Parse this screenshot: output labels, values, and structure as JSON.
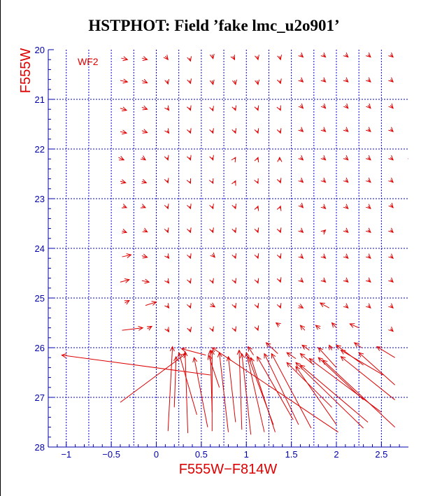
{
  "chart_data": {
    "type": "scatter",
    "title": "HSTPHOT: Field ’fake lmc_u2o901’",
    "xlabel": "F555W−F814W",
    "ylabel": "F555W",
    "annotation": "WF2",
    "xlim": [
      -1.2,
      2.8
    ],
    "ylim": [
      28,
      20
    ],
    "x_ticks": [
      "−1",
      "−0.5",
      "0",
      "0.5",
      "1",
      "1.5",
      "2",
      "2.5"
    ],
    "y_ticks": [
      "20",
      "21",
      "22",
      "23",
      "24",
      "25",
      "26",
      "27",
      "28"
    ],
    "grid": true,
    "grid_x": [
      -0.75,
      -0.25,
      0.25,
      0.75,
      1.25,
      1.75,
      2.25
    ],
    "grid_y": [
      21,
      22,
      23,
      24,
      25,
      26,
      27
    ],
    "colors": {
      "axis": "#0000aa",
      "grid": "#0000cc",
      "vectors": "#dd0000",
      "labels": "#dd0000",
      "title": "#000000"
    },
    "vectors_description": "Each vector starts at an input (x, y) and ends at the recovered (x, y) position; arrowhead at the end.",
    "vectors": [
      [
        -0.39,
        20.17,
        -0.32,
        20.2
      ],
      [
        -0.16,
        20.17,
        -0.1,
        20.2
      ],
      [
        0.1,
        20.13,
        0.13,
        20.2
      ],
      [
        0.37,
        20.17,
        0.38,
        20.23
      ],
      [
        0.62,
        20.1,
        0.63,
        20.18
      ],
      [
        0.85,
        20.13,
        0.87,
        20.2
      ],
      [
        1.12,
        20.13,
        1.13,
        20.2
      ],
      [
        1.37,
        20.13,
        1.38,
        20.2
      ],
      [
        1.6,
        20.1,
        1.63,
        20.15
      ],
      [
        1.85,
        20.1,
        1.88,
        20.15
      ],
      [
        2.1,
        20.1,
        2.13,
        20.15
      ],
      [
        2.35,
        20.1,
        2.38,
        20.15
      ],
      [
        2.6,
        20.1,
        2.63,
        20.15
      ],
      [
        -0.4,
        20.62,
        -0.32,
        20.65
      ],
      [
        -0.16,
        20.62,
        -0.1,
        20.67
      ],
      [
        0.12,
        20.62,
        0.13,
        20.69
      ],
      [
        0.37,
        20.62,
        0.38,
        20.68
      ],
      [
        0.62,
        20.62,
        0.63,
        20.7
      ],
      [
        0.87,
        20.62,
        0.88,
        20.7
      ],
      [
        1.12,
        20.62,
        1.13,
        20.7
      ],
      [
        1.37,
        20.62,
        1.38,
        20.68
      ],
      [
        1.6,
        20.6,
        1.63,
        20.65
      ],
      [
        1.85,
        20.6,
        1.88,
        20.65
      ],
      [
        2.1,
        20.6,
        2.13,
        20.65
      ],
      [
        2.35,
        20.6,
        2.38,
        20.65
      ],
      [
        2.6,
        20.6,
        2.63,
        20.65
      ],
      [
        -0.4,
        21.18,
        -0.33,
        21.22
      ],
      [
        -0.16,
        21.16,
        -0.1,
        21.2
      ],
      [
        0.12,
        21.17,
        0.14,
        21.22
      ],
      [
        0.37,
        21.17,
        0.38,
        21.22
      ],
      [
        0.62,
        21.18,
        0.63,
        21.23
      ],
      [
        0.87,
        21.17,
        0.88,
        21.22
      ],
      [
        1.12,
        21.17,
        1.13,
        21.22
      ],
      [
        1.37,
        21.18,
        1.38,
        21.22
      ],
      [
        1.6,
        21.12,
        1.63,
        21.18
      ],
      [
        1.85,
        21.12,
        1.88,
        21.18
      ],
      [
        2.1,
        21.12,
        2.13,
        21.18
      ],
      [
        2.35,
        21.12,
        2.38,
        21.18
      ],
      [
        2.6,
        21.12,
        2.63,
        21.18
      ],
      [
        -0.4,
        21.65,
        -0.33,
        21.68
      ],
      [
        -0.16,
        21.63,
        -0.1,
        21.67
      ],
      [
        0.12,
        21.63,
        0.14,
        21.68
      ],
      [
        0.37,
        21.63,
        0.38,
        21.68
      ],
      [
        0.62,
        21.63,
        0.63,
        21.68
      ],
      [
        0.87,
        21.63,
        0.88,
        21.68
      ],
      [
        1.12,
        21.63,
        1.13,
        21.68
      ],
      [
        1.37,
        21.63,
        1.38,
        21.68
      ],
      [
        1.6,
        21.6,
        1.63,
        21.65
      ],
      [
        1.85,
        21.6,
        1.88,
        21.65
      ],
      [
        2.1,
        21.6,
        2.13,
        21.65
      ],
      [
        2.35,
        21.6,
        2.38,
        21.65
      ],
      [
        2.6,
        21.6,
        2.63,
        21.65
      ],
      [
        -0.42,
        22.17,
        -0.36,
        22.22
      ],
      [
        -0.16,
        22.17,
        -0.12,
        22.22
      ],
      [
        0.12,
        22.17,
        0.13,
        22.22
      ],
      [
        0.37,
        22.17,
        0.38,
        22.22
      ],
      [
        0.62,
        22.17,
        0.63,
        22.22
      ],
      [
        0.87,
        22.2,
        0.88,
        22.17
      ],
      [
        1.12,
        22.22,
        1.13,
        22.17
      ],
      [
        1.37,
        22.23,
        1.37,
        22.17
      ],
      [
        1.6,
        22.17,
        1.63,
        22.22
      ],
      [
        1.85,
        22.17,
        1.88,
        22.22
      ],
      [
        2.1,
        22.17,
        2.13,
        22.22
      ],
      [
        2.35,
        22.17,
        2.38,
        22.22
      ],
      [
        2.6,
        22.17,
        2.63,
        22.22
      ],
      [
        2.8,
        22.15,
        2.85,
        22.2
      ],
      [
        -0.4,
        22.65,
        -0.34,
        22.68
      ],
      [
        -0.16,
        22.65,
        -0.11,
        22.68
      ],
      [
        0.12,
        22.63,
        0.13,
        22.68
      ],
      [
        0.37,
        22.65,
        0.38,
        22.69
      ],
      [
        0.62,
        22.65,
        0.63,
        22.69
      ],
      [
        0.87,
        22.68,
        0.88,
        22.64
      ],
      [
        1.12,
        22.65,
        1.13,
        22.69
      ],
      [
        1.37,
        22.63,
        1.38,
        22.68
      ],
      [
        1.6,
        22.62,
        1.63,
        22.67
      ],
      [
        1.85,
        22.62,
        1.88,
        22.67
      ],
      [
        2.1,
        22.62,
        2.13,
        22.67
      ],
      [
        2.35,
        22.62,
        2.38,
        22.67
      ],
      [
        2.6,
        22.62,
        2.63,
        22.67
      ],
      [
        -0.37,
        23.15,
        -0.33,
        23.18
      ],
      [
        -0.16,
        23.15,
        -0.12,
        23.18
      ],
      [
        0.12,
        23.15,
        0.13,
        23.2
      ],
      [
        0.37,
        23.15,
        0.38,
        23.2
      ],
      [
        0.62,
        23.15,
        0.63,
        23.2
      ],
      [
        0.87,
        23.15,
        0.88,
        23.2
      ],
      [
        1.12,
        23.2,
        1.13,
        23.15
      ],
      [
        1.37,
        23.2,
        1.38,
        23.15
      ],
      [
        1.6,
        23.12,
        1.63,
        23.18
      ],
      [
        1.85,
        23.15,
        1.88,
        23.2
      ],
      [
        2.1,
        23.15,
        2.13,
        23.2
      ],
      [
        2.35,
        23.15,
        2.38,
        23.2
      ],
      [
        2.6,
        23.12,
        2.63,
        23.18
      ],
      [
        -0.38,
        23.65,
        -0.33,
        23.68
      ],
      [
        -0.14,
        23.63,
        -0.1,
        23.67
      ],
      [
        0.12,
        23.63,
        0.13,
        23.68
      ],
      [
        0.37,
        23.63,
        0.38,
        23.68
      ],
      [
        0.62,
        23.63,
        0.63,
        23.68
      ],
      [
        0.87,
        23.63,
        0.88,
        23.68
      ],
      [
        1.12,
        23.63,
        1.13,
        23.68
      ],
      [
        1.37,
        23.63,
        1.38,
        23.68
      ],
      [
        1.6,
        23.63,
        1.63,
        23.68
      ],
      [
        1.85,
        23.68,
        1.88,
        23.63
      ],
      [
        2.1,
        23.63,
        2.13,
        23.68
      ],
      [
        2.35,
        23.63,
        2.38,
        23.68
      ],
      [
        2.6,
        23.63,
        2.63,
        23.68
      ],
      [
        -0.38,
        24.17,
        -0.28,
        24.13
      ],
      [
        -0.16,
        24.15,
        -0.1,
        24.18
      ],
      [
        0.12,
        24.15,
        0.14,
        24.2
      ],
      [
        0.37,
        24.15,
        0.38,
        24.2
      ],
      [
        0.62,
        24.12,
        0.65,
        24.18
      ],
      [
        0.87,
        24.15,
        0.88,
        24.2
      ],
      [
        1.12,
        24.15,
        1.13,
        24.2
      ],
      [
        1.37,
        24.15,
        1.38,
        24.2
      ],
      [
        1.6,
        24.15,
        1.63,
        24.2
      ],
      [
        1.85,
        24.15,
        1.88,
        24.2
      ],
      [
        2.1,
        24.15,
        2.13,
        24.2
      ],
      [
        2.35,
        24.15,
        2.38,
        24.2
      ],
      [
        2.6,
        24.15,
        2.63,
        24.2
      ],
      [
        -0.4,
        24.68,
        -0.3,
        24.63
      ],
      [
        -0.16,
        24.65,
        -0.08,
        24.68
      ],
      [
        0.12,
        24.65,
        0.14,
        24.7
      ],
      [
        0.37,
        24.65,
        0.38,
        24.7
      ],
      [
        0.62,
        24.65,
        0.63,
        24.7
      ],
      [
        0.87,
        24.65,
        0.88,
        24.7
      ],
      [
        1.12,
        24.65,
        1.13,
        24.7
      ],
      [
        1.37,
        24.63,
        1.38,
        24.68
      ],
      [
        1.6,
        24.63,
        1.63,
        24.68
      ],
      [
        1.85,
        24.63,
        1.88,
        24.68
      ],
      [
        2.1,
        24.63,
        2.13,
        24.68
      ],
      [
        2.35,
        24.63,
        2.38,
        24.68
      ],
      [
        2.6,
        24.63,
        2.63,
        24.68
      ],
      [
        -0.35,
        25.1,
        -0.3,
        25.05
      ],
      [
        -0.12,
        25.15,
        0.0,
        25.08
      ],
      [
        0.12,
        25.15,
        0.14,
        25.2
      ],
      [
        0.37,
        25.15,
        0.38,
        25.2
      ],
      [
        0.6,
        25.12,
        0.65,
        25.18
      ],
      [
        0.87,
        25.15,
        0.88,
        25.2
      ],
      [
        1.12,
        25.15,
        1.13,
        25.2
      ],
      [
        1.37,
        25.15,
        1.38,
        25.2
      ],
      [
        1.58,
        25.15,
        1.63,
        25.2
      ],
      [
        1.92,
        25.2,
        1.82,
        25.1
      ],
      [
        2.1,
        25.15,
        2.13,
        25.2
      ],
      [
        2.35,
        25.15,
        2.38,
        25.2
      ],
      [
        2.6,
        25.15,
        2.63,
        25.2
      ],
      [
        -0.38,
        25.65,
        -0.15,
        25.6
      ],
      [
        -0.1,
        25.62,
        -0.05,
        25.57
      ],
      [
        0.12,
        25.62,
        0.14,
        25.68
      ],
      [
        0.37,
        25.62,
        0.38,
        25.68
      ],
      [
        0.62,
        25.62,
        0.63,
        25.67
      ],
      [
        0.87,
        25.62,
        0.88,
        25.67
      ],
      [
        1.12,
        25.6,
        1.13,
        25.65
      ],
      [
        1.37,
        25.55,
        1.33,
        25.5
      ],
      [
        1.65,
        25.65,
        1.6,
        25.55
      ],
      [
        1.82,
        25.62,
        1.77,
        25.55
      ],
      [
        2.0,
        25.6,
        1.95,
        25.5
      ],
      [
        2.25,
        25.6,
        2.15,
        25.52
      ],
      [
        2.6,
        25.62,
        2.63,
        25.67
      ],
      [
        -0.4,
        27.1,
        0.33,
        26.12
      ],
      [
        0.13,
        27.68,
        0.18,
        25.98
      ],
      [
        0.2,
        27.2,
        0.22,
        26.18
      ],
      [
        0.35,
        27.72,
        0.32,
        26.08
      ],
      [
        0.45,
        27.35,
        0.25,
        26.1
      ],
      [
        0.57,
        27.6,
        0.42,
        26.2
      ],
      [
        0.62,
        27.3,
        0.6,
        26.05
      ],
      [
        0.62,
        27.68,
        0.62,
        26.05
      ],
      [
        0.7,
        26.8,
        0.58,
        26.15
      ],
      [
        0.8,
        27.7,
        0.7,
        26.1
      ],
      [
        0.88,
        27.5,
        0.8,
        26.18
      ],
      [
        0.95,
        27.65,
        0.92,
        26.05
      ],
      [
        1.05,
        27.75,
        0.95,
        26.12
      ],
      [
        1.2,
        27.7,
        1.0,
        26.1
      ],
      [
        1.3,
        27.55,
        1.02,
        26.18
      ],
      [
        1.32,
        27.7,
        1.05,
        26.2
      ],
      [
        1.52,
        27.45,
        1.12,
        26.18
      ],
      [
        1.58,
        27.55,
        1.2,
        26.12
      ],
      [
        1.72,
        27.62,
        1.28,
        26.12
      ],
      [
        2.02,
        27.7,
        0.62,
        26.0
      ],
      [
        1.95,
        27.2,
        1.45,
        26.3
      ],
      [
        2.0,
        27.55,
        1.55,
        26.38
      ],
      [
        2.3,
        27.62,
        1.55,
        26.3
      ],
      [
        2.35,
        27.5,
        1.6,
        26.35
      ],
      [
        2.5,
        27.3,
        1.7,
        26.22
      ],
      [
        2.3,
        27.05,
        1.8,
        26.2
      ],
      [
        2.65,
        27.6,
        1.85,
        26.25
      ],
      [
        2.65,
        27.05,
        2.05,
        26.18
      ],
      [
        2.65,
        26.75,
        2.25,
        26.1
      ],
      [
        2.52,
        26.55,
        2.05,
        26.05
      ],
      [
        2.3,
        26.35,
        2.0,
        25.95
      ],
      [
        2.0,
        26.4,
        1.8,
        26.0
      ],
      [
        1.75,
        26.35,
        1.6,
        26.12
      ],
      [
        1.55,
        26.22,
        1.45,
        26.1
      ],
      [
        1.35,
        26.12,
        1.22,
        25.9
      ],
      [
        1.08,
        26.15,
        1.02,
        25.98
      ],
      [
        0.55,
        26.15,
        0.28,
        26.02
      ],
      [
        0.6,
        26.55,
        -1.05,
        26.15
      ],
      [
        2.65,
        26.2,
        2.45,
        25.98
      ],
      [
        2.28,
        26.0,
        2.2,
        25.9
      ],
      [
        1.95,
        26.05,
        1.92,
        25.95
      ],
      [
        1.7,
        26.05,
        1.62,
        25.95
      ]
    ]
  }
}
